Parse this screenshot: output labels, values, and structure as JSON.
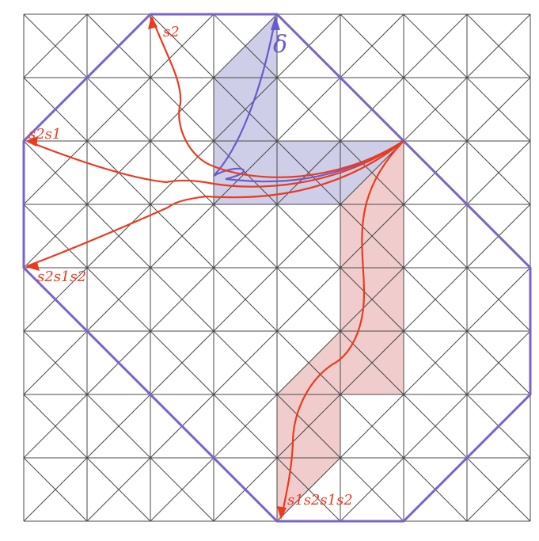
{
  "colors": {
    "background": "#ffffff",
    "grid": "#4a4a4a",
    "boundary": "#7b63c8",
    "blue_fill": "#c9c9e6",
    "red_fill": "#efc7c7",
    "blue_path": "#6a5acd",
    "red_path": "#ea3b1f"
  },
  "labels": {
    "delta": "δ",
    "s2": "s2",
    "s2s1": "s2s1",
    "s2s1s2": "s2s1s2",
    "s1s2s1s2": "s1s2s1s2"
  }
}
